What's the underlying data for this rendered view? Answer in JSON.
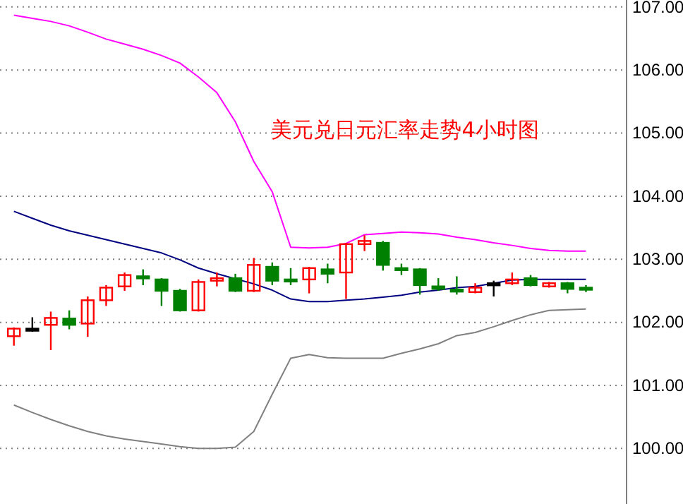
{
  "chart_data": {
    "type": "candlestick",
    "title": "美元兑日元汇率走势4小时图",
    "categories": [
      null,
      null,
      null,
      null,
      null,
      null,
      null,
      null,
      null,
      null,
      null,
      null,
      null,
      null,
      null,
      null,
      null,
      null,
      null,
      null,
      null,
      null,
      null,
      null,
      null,
      null,
      null,
      null,
      null,
      null,
      null,
      null
    ],
    "ohlc": [
      [
        101.78,
        101.92,
        101.63,
        101.9
      ],
      [
        101.9,
        102.08,
        101.85,
        101.9
      ],
      [
        101.96,
        102.17,
        101.56,
        102.07
      ],
      [
        102.06,
        102.19,
        101.89,
        101.96
      ],
      [
        101.98,
        102.41,
        101.77,
        102.35
      ],
      [
        102.35,
        102.59,
        102.26,
        102.55
      ],
      [
        102.57,
        102.79,
        102.5,
        102.75
      ],
      [
        102.73,
        102.84,
        102.59,
        102.73
      ],
      [
        102.68,
        102.7,
        102.26,
        102.5
      ],
      [
        102.5,
        102.53,
        102.17,
        102.19
      ],
      [
        102.19,
        102.68,
        102.17,
        102.64
      ],
      [
        102.66,
        102.79,
        102.57,
        102.7
      ],
      [
        102.7,
        102.77,
        102.48,
        102.5
      ],
      [
        102.5,
        103.02,
        102.48,
        102.91
      ],
      [
        102.88,
        102.95,
        102.59,
        102.66
      ],
      [
        102.68,
        102.86,
        102.59,
        102.68
      ],
      [
        102.68,
        102.88,
        102.46,
        102.86
      ],
      [
        102.84,
        102.93,
        102.62,
        102.77
      ],
      [
        102.79,
        103.26,
        102.37,
        103.24
      ],
      [
        103.24,
        103.38,
        103.13,
        103.29
      ],
      [
        103.26,
        103.29,
        102.82,
        102.91
      ],
      [
        102.86,
        102.93,
        102.75,
        102.84
      ],
      [
        102.84,
        102.86,
        102.44,
        102.59
      ],
      [
        102.57,
        102.7,
        102.5,
        102.53
      ],
      [
        102.52,
        102.73,
        102.44,
        102.49
      ],
      [
        102.48,
        102.62,
        102.46,
        102.55
      ],
      [
        102.62,
        102.66,
        102.41,
        102.62
      ],
      [
        102.62,
        102.79,
        102.59,
        102.68
      ],
      [
        102.7,
        102.75,
        102.57,
        102.59
      ],
      [
        102.57,
        102.64,
        102.55,
        102.62
      ],
      [
        102.62,
        102.64,
        102.46,
        102.53
      ],
      [
        102.55,
        102.59,
        102.48,
        102.53
      ]
    ],
    "colors": [
      "#ff0000",
      "#000000",
      "#ff0000",
      "#008000",
      "#ff0000",
      "#ff0000",
      "#ff0000",
      "#008000",
      "#008000",
      "#008000",
      "#ff0000",
      "#ff0000",
      "#008000",
      "#ff0000",
      "#008000",
      "#008000",
      "#ff0000",
      "#008000",
      "#ff0000",
      "#ff0000",
      "#008000",
      "#008000",
      "#008000",
      "#008000",
      "#008000",
      "#ff0000",
      "#000000",
      "#ff0000",
      "#008000",
      "#ff0000",
      "#008000",
      "#008000"
    ],
    "series": [
      {
        "type": "line",
        "color": "#ff00ff",
        "values": [
          106.87,
          106.82,
          106.77,
          106.7,
          106.6,
          106.49,
          106.41,
          106.33,
          106.23,
          106.11,
          105.89,
          105.64,
          105.18,
          104.55,
          104.07,
          103.19,
          103.18,
          103.19,
          103.25,
          103.39,
          103.41,
          103.43,
          103.42,
          103.4,
          103.35,
          103.31,
          103.26,
          103.22,
          103.17,
          103.14,
          103.13,
          103.13
        ]
      },
      {
        "type": "line",
        "color": "#000080",
        "values": [
          103.76,
          103.65,
          103.54,
          103.45,
          103.38,
          103.31,
          103.24,
          103.17,
          103.1,
          102.99,
          102.86,
          102.77,
          102.69,
          102.61,
          102.51,
          102.37,
          102.33,
          102.33,
          102.35,
          102.37,
          102.4,
          102.43,
          102.48,
          102.51,
          102.55,
          102.57,
          102.62,
          102.67,
          102.68,
          102.68,
          102.68,
          102.68
        ]
      },
      {
        "type": "line",
        "color": "#808080",
        "values": [
          100.69,
          100.57,
          100.46,
          100.36,
          100.27,
          100.2,
          100.15,
          100.11,
          100.07,
          100.03,
          100,
          100,
          100.02,
          100.27,
          100.86,
          101.43,
          101.49,
          101.44,
          101.43,
          101.43,
          101.43,
          101.51,
          101.58,
          101.66,
          101.79,
          101.84,
          101.93,
          102.03,
          102.12,
          102.19,
          102.2,
          102.21
        ]
      }
    ],
    "ylim": [
      99.12,
      107.11
    ],
    "yticks": [
      {
        "value": 100,
        "label": "100.00"
      },
      {
        "value": 101,
        "label": "101.00"
      },
      {
        "value": 102,
        "label": "102.00"
      },
      {
        "value": 103,
        "label": "103.00"
      },
      {
        "value": 104,
        "label": "104.00"
      },
      {
        "value": 105,
        "label": "105.00"
      },
      {
        "value": 106,
        "label": "106.00"
      },
      {
        "value": 107,
        "label": "107.00"
      }
    ],
    "tick_labels": "y",
    "grid": "y",
    "line_style": "solid"
  }
}
